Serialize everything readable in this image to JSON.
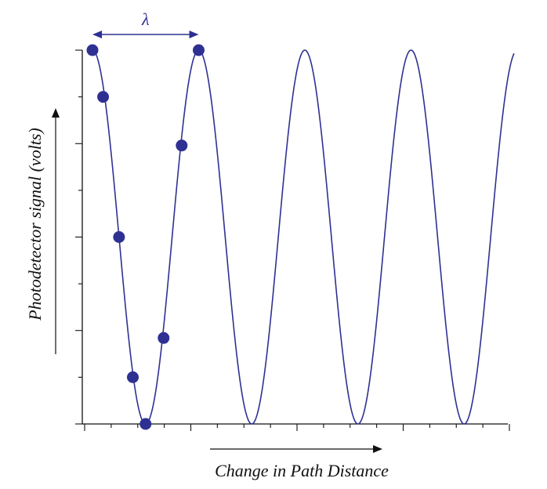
{
  "chart_data": {
    "type": "line",
    "title": "",
    "xlabel": "Change in Path Distance",
    "ylabel": "Photodetector signal (volts)",
    "xlim": [
      0,
      4
    ],
    "ylim": [
      0,
      1
    ],
    "wavelength": 1,
    "wavelength_label": "λ",
    "series": [
      {
        "name": "signal curve",
        "function": "0.5 + 0.5*cos(2*pi*x)",
        "x_range": [
          0,
          4
        ]
      },
      {
        "name": "measured points",
        "points": [
          {
            "x": 0.0,
            "y": 1.0
          },
          {
            "x": 0.1,
            "y": 0.875
          },
          {
            "x": 0.25,
            "y": 0.5
          },
          {
            "x": 0.38,
            "y": 0.125
          },
          {
            "x": 0.5,
            "y": 0.0
          },
          {
            "x": 0.67,
            "y": 0.23
          },
          {
            "x": 0.84,
            "y": 0.745
          },
          {
            "x": 1.0,
            "y": 1.0
          }
        ]
      }
    ],
    "colors": {
      "curve": "#2e3192",
      "points": "#2e3192",
      "axis": "#111111",
      "arrow": "#111111"
    }
  }
}
